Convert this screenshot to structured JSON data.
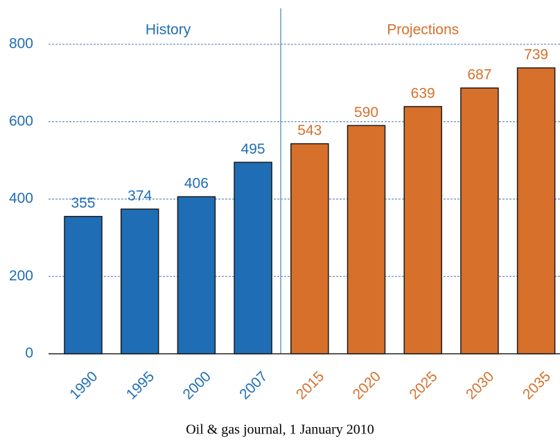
{
  "chart_data": {
    "type": "bar",
    "categories": [
      "1990",
      "1995",
      "2000",
      "2007",
      "2015",
      "2020",
      "2025",
      "2030",
      "2035"
    ],
    "series": [
      {
        "name": "History",
        "color": "#1f6db5",
        "values": [
          355,
          374,
          406,
          495,
          null,
          null,
          null,
          null,
          null
        ]
      },
      {
        "name": "Projections",
        "color": "#d6702b",
        "values": [
          null,
          null,
          null,
          null,
          543,
          590,
          639,
          687,
          739
        ]
      }
    ],
    "ylim": [
      0,
      800
    ],
    "yticks": [
      0,
      200,
      400,
      600,
      800
    ],
    "grid": true,
    "caption": "Oil & gas journal, 1 January 2010"
  }
}
